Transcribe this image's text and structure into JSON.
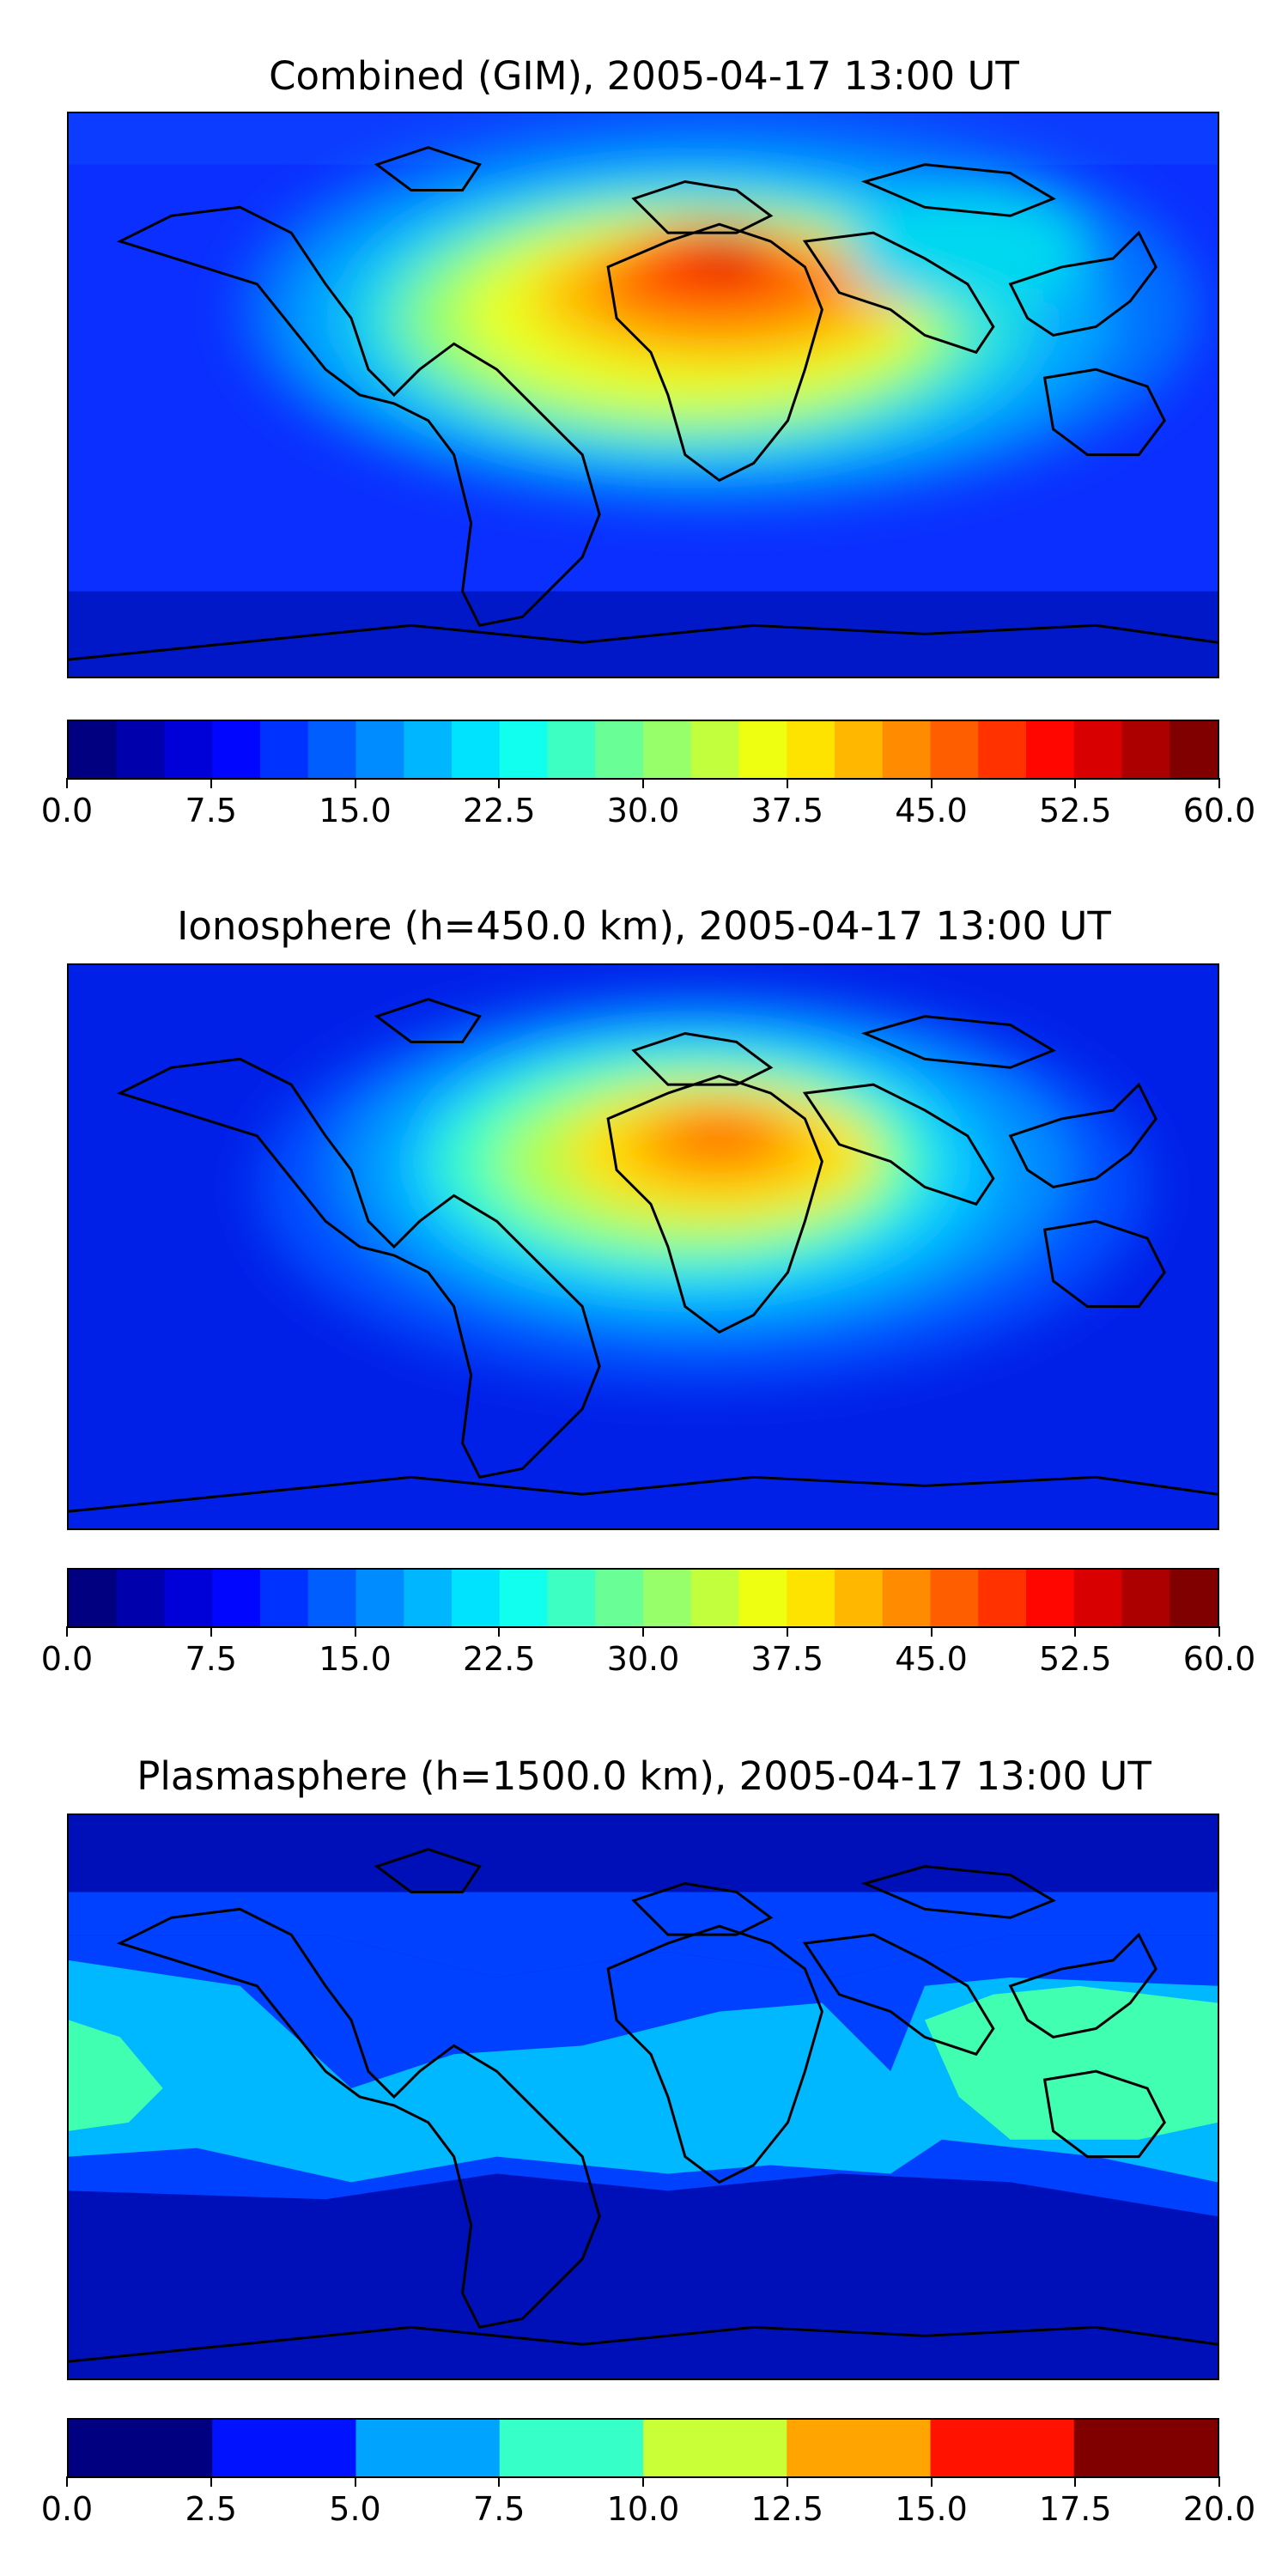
{
  "panels": [
    {
      "title": "Combined (GIM), 2005-04-17 13:00 UT",
      "colorbar": {
        "min": 0,
        "max": 60,
        "levels": 24,
        "tick_labels": [
          "0.0",
          "7.5",
          "15.0",
          "22.5",
          "30.0",
          "37.5",
          "45.0",
          "52.5",
          "60.0"
        ]
      }
    },
    {
      "title": "Ionosphere  (h=450.0 km), 2005-04-17 13:00 UT",
      "colorbar": {
        "min": 0,
        "max": 60,
        "levels": 24,
        "tick_labels": [
          "0.0",
          "7.5",
          "15.0",
          "22.5",
          "30.0",
          "37.5",
          "45.0",
          "52.5",
          "60.0"
        ]
      }
    },
    {
      "title": "Plasmasphere (h=1500.0 km), 2005-04-17 13:00 UT",
      "colorbar": {
        "min": 0,
        "max": 20,
        "levels": 8,
        "tick_labels": [
          "0.0",
          "2.5",
          "5.0",
          "7.5",
          "10.0",
          "12.5",
          "15.0",
          "17.5",
          "20.0"
        ]
      }
    }
  ],
  "colormap": "jet"
}
